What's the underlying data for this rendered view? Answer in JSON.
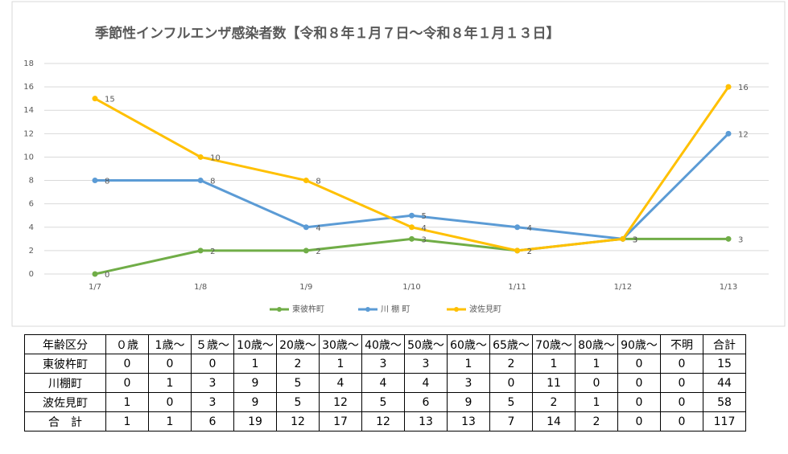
{
  "chart_data": {
    "type": "line",
    "title": "季節性インフルエンザ感染者数【令和８年１月７日～令和８年１月１３日】",
    "categories": [
      "1/7",
      "1/8",
      "1/9",
      "1/10",
      "1/11",
      "1/12",
      "1/13"
    ],
    "series": [
      {
        "name": "東彼杵町",
        "color": "#70ad47",
        "values": [
          0,
          2,
          2,
          3,
          2,
          3,
          3
        ]
      },
      {
        "name": "川 棚 町",
        "color": "#5b9bd5",
        "values": [
          8,
          8,
          4,
          5,
          4,
          3,
          12
        ]
      },
      {
        "name": "波佐見町",
        "color": "#ffc000",
        "values": [
          15,
          10,
          8,
          4,
          2,
          3,
          16
        ]
      }
    ],
    "ylim": [
      0,
      18
    ],
    "yticks": [
      0,
      2,
      4,
      6,
      8,
      10,
      12,
      14,
      16,
      18
    ],
    "grid": true,
    "legend": "bottom"
  },
  "table": {
    "header": [
      "年齢区分",
      "０歳",
      "1歳～",
      "５歳～",
      "10歳～",
      "20歳～",
      "30歳～",
      "40歳～",
      "50歳～",
      "60歳～",
      "65歳～",
      "70歳～",
      "80歳～",
      "90歳～",
      "不明",
      "合計"
    ],
    "rows": [
      [
        "東彼杵町",
        0,
        0,
        0,
        1,
        2,
        1,
        3,
        3,
        1,
        2,
        1,
        1,
        0,
        0,
        15
      ],
      [
        "川棚町",
        0,
        1,
        3,
        9,
        5,
        4,
        4,
        4,
        3,
        0,
        11,
        0,
        0,
        0,
        44
      ],
      [
        "波佐見町",
        1,
        0,
        3,
        9,
        5,
        12,
        5,
        6,
        9,
        5,
        2,
        1,
        0,
        0,
        58
      ],
      [
        "合　計",
        1,
        1,
        6,
        19,
        12,
        17,
        12,
        13,
        13,
        7,
        14,
        2,
        0,
        0,
        117
      ]
    ]
  }
}
